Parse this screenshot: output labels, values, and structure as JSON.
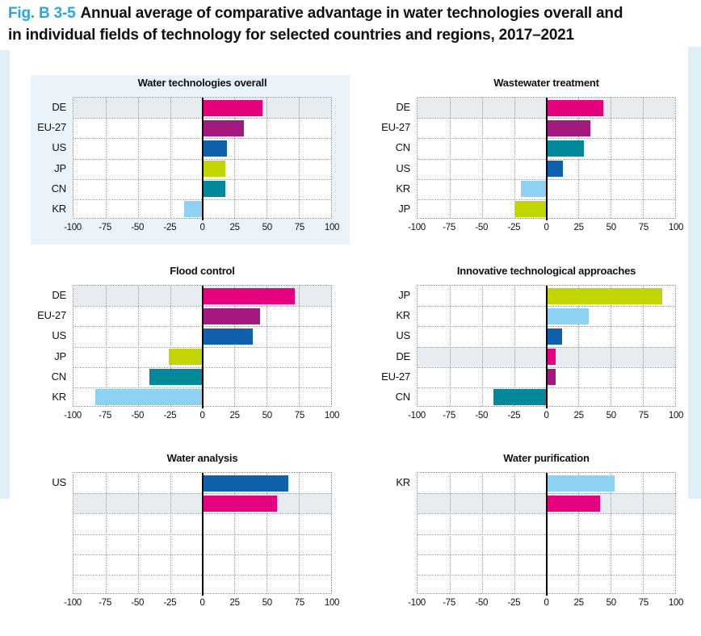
{
  "header": {
    "fig_label": "Fig. B 3-5",
    "line1": "Annual average of comparative advantage in water technologies overall and",
    "line2": "in individual fields of technology for selected countries and regions, 2017–2021"
  },
  "palette": {
    "DE": "#e5007d",
    "EU-27": "#a3197f",
    "US": "#0f60ad",
    "JP": "#c3d500",
    "CN": "#00889b",
    "KR": "#8ed2f3",
    "highlight_band": "#e7ecf0",
    "panel_background": "#e9f3f9",
    "page_stripe": "#e0eef8",
    "grid_line": "#9a9a9a",
    "zero_line": "#000000",
    "fig_label_color": "#29a8df",
    "text": "#111111"
  },
  "chart_data": [
    {
      "type": "bar",
      "orientation": "horizontal",
      "title": "Water technologies overall",
      "categories": [
        "DE",
        "EU-27",
        "US",
        "JP",
        "CN",
        "KR"
      ],
      "values": [
        47,
        32,
        19,
        18,
        18,
        -14
      ],
      "color_keys": [
        "DE",
        "EU-27",
        "US",
        "JP",
        "CN",
        "KR"
      ],
      "highlight_row": 0,
      "xlim": [
        -100,
        100
      ],
      "xticks": [
        -100,
        -75,
        -50,
        -25,
        0,
        25,
        50,
        75,
        100
      ],
      "grid": "dotted",
      "panel_background": true
    },
    {
      "type": "bar",
      "orientation": "horizontal",
      "title": "Wastewater treatment",
      "categories": [
        "DE",
        "EU-27",
        "CN",
        "US",
        "KR",
        "JP"
      ],
      "values": [
        44,
        34,
        29,
        13,
        -20,
        -24
      ],
      "color_keys": [
        "DE",
        "EU-27",
        "CN",
        "US",
        "KR",
        "JP"
      ],
      "highlight_row": 0,
      "xlim": [
        -100,
        100
      ],
      "xticks": [
        -100,
        -75,
        -50,
        -25,
        0,
        25,
        50,
        75,
        100
      ],
      "grid": "dotted",
      "panel_background": false
    },
    {
      "type": "bar",
      "orientation": "horizontal",
      "title": "Flood control",
      "categories": [
        "DE",
        "EU-27",
        "US",
        "JP",
        "CN",
        "KR"
      ],
      "values": [
        72,
        45,
        39,
        -26,
        -41,
        -83
      ],
      "color_keys": [
        "DE",
        "EU-27",
        "US",
        "JP",
        "CN",
        "KR"
      ],
      "highlight_row": 0,
      "xlim": [
        -100,
        100
      ],
      "xticks": [
        -100,
        -75,
        -50,
        -25,
        0,
        25,
        50,
        75,
        100
      ],
      "grid": "dotted",
      "panel_background": false
    },
    {
      "type": "bar",
      "orientation": "horizontal",
      "title": "Innovative technological approaches",
      "categories": [
        "JP",
        "KR",
        "US",
        "DE",
        "EU-27",
        "CN"
      ],
      "values": [
        90,
        33,
        12,
        7,
        7,
        -41
      ],
      "color_keys": [
        "JP",
        "KR",
        "US",
        "DE",
        "EU-27",
        "CN"
      ],
      "highlight_row": 3,
      "xlim": [
        -100,
        100
      ],
      "xticks": [
        -100,
        -75,
        -50,
        -25,
        0,
        25,
        50,
        75,
        100
      ],
      "grid": "dotted",
      "panel_background": false
    },
    {
      "type": "bar",
      "orientation": "horizontal",
      "title": "Water analysis",
      "categories": [
        "US",
        ""
      ],
      "values": [
        67,
        58
      ],
      "color_keys": [
        "US",
        "DE"
      ],
      "highlight_row": 1,
      "xlim": [
        -100,
        100
      ],
      "xticks": [
        -100,
        -75,
        -50,
        -25,
        0,
        25,
        50,
        75,
        100
      ],
      "grid": "dotted",
      "panel_background": false,
      "clipped_bottom": true
    },
    {
      "type": "bar",
      "orientation": "horizontal",
      "title": "Water purification",
      "categories": [
        "KR",
        ""
      ],
      "values": [
        53,
        42
      ],
      "color_keys": [
        "KR",
        "DE"
      ],
      "highlight_row": 1,
      "xlim": [
        -100,
        100
      ],
      "xticks": [
        -100,
        -75,
        -50,
        -25,
        0,
        25,
        50,
        75,
        100
      ],
      "grid": "dotted",
      "panel_background": false,
      "clipped_bottom": true
    }
  ]
}
